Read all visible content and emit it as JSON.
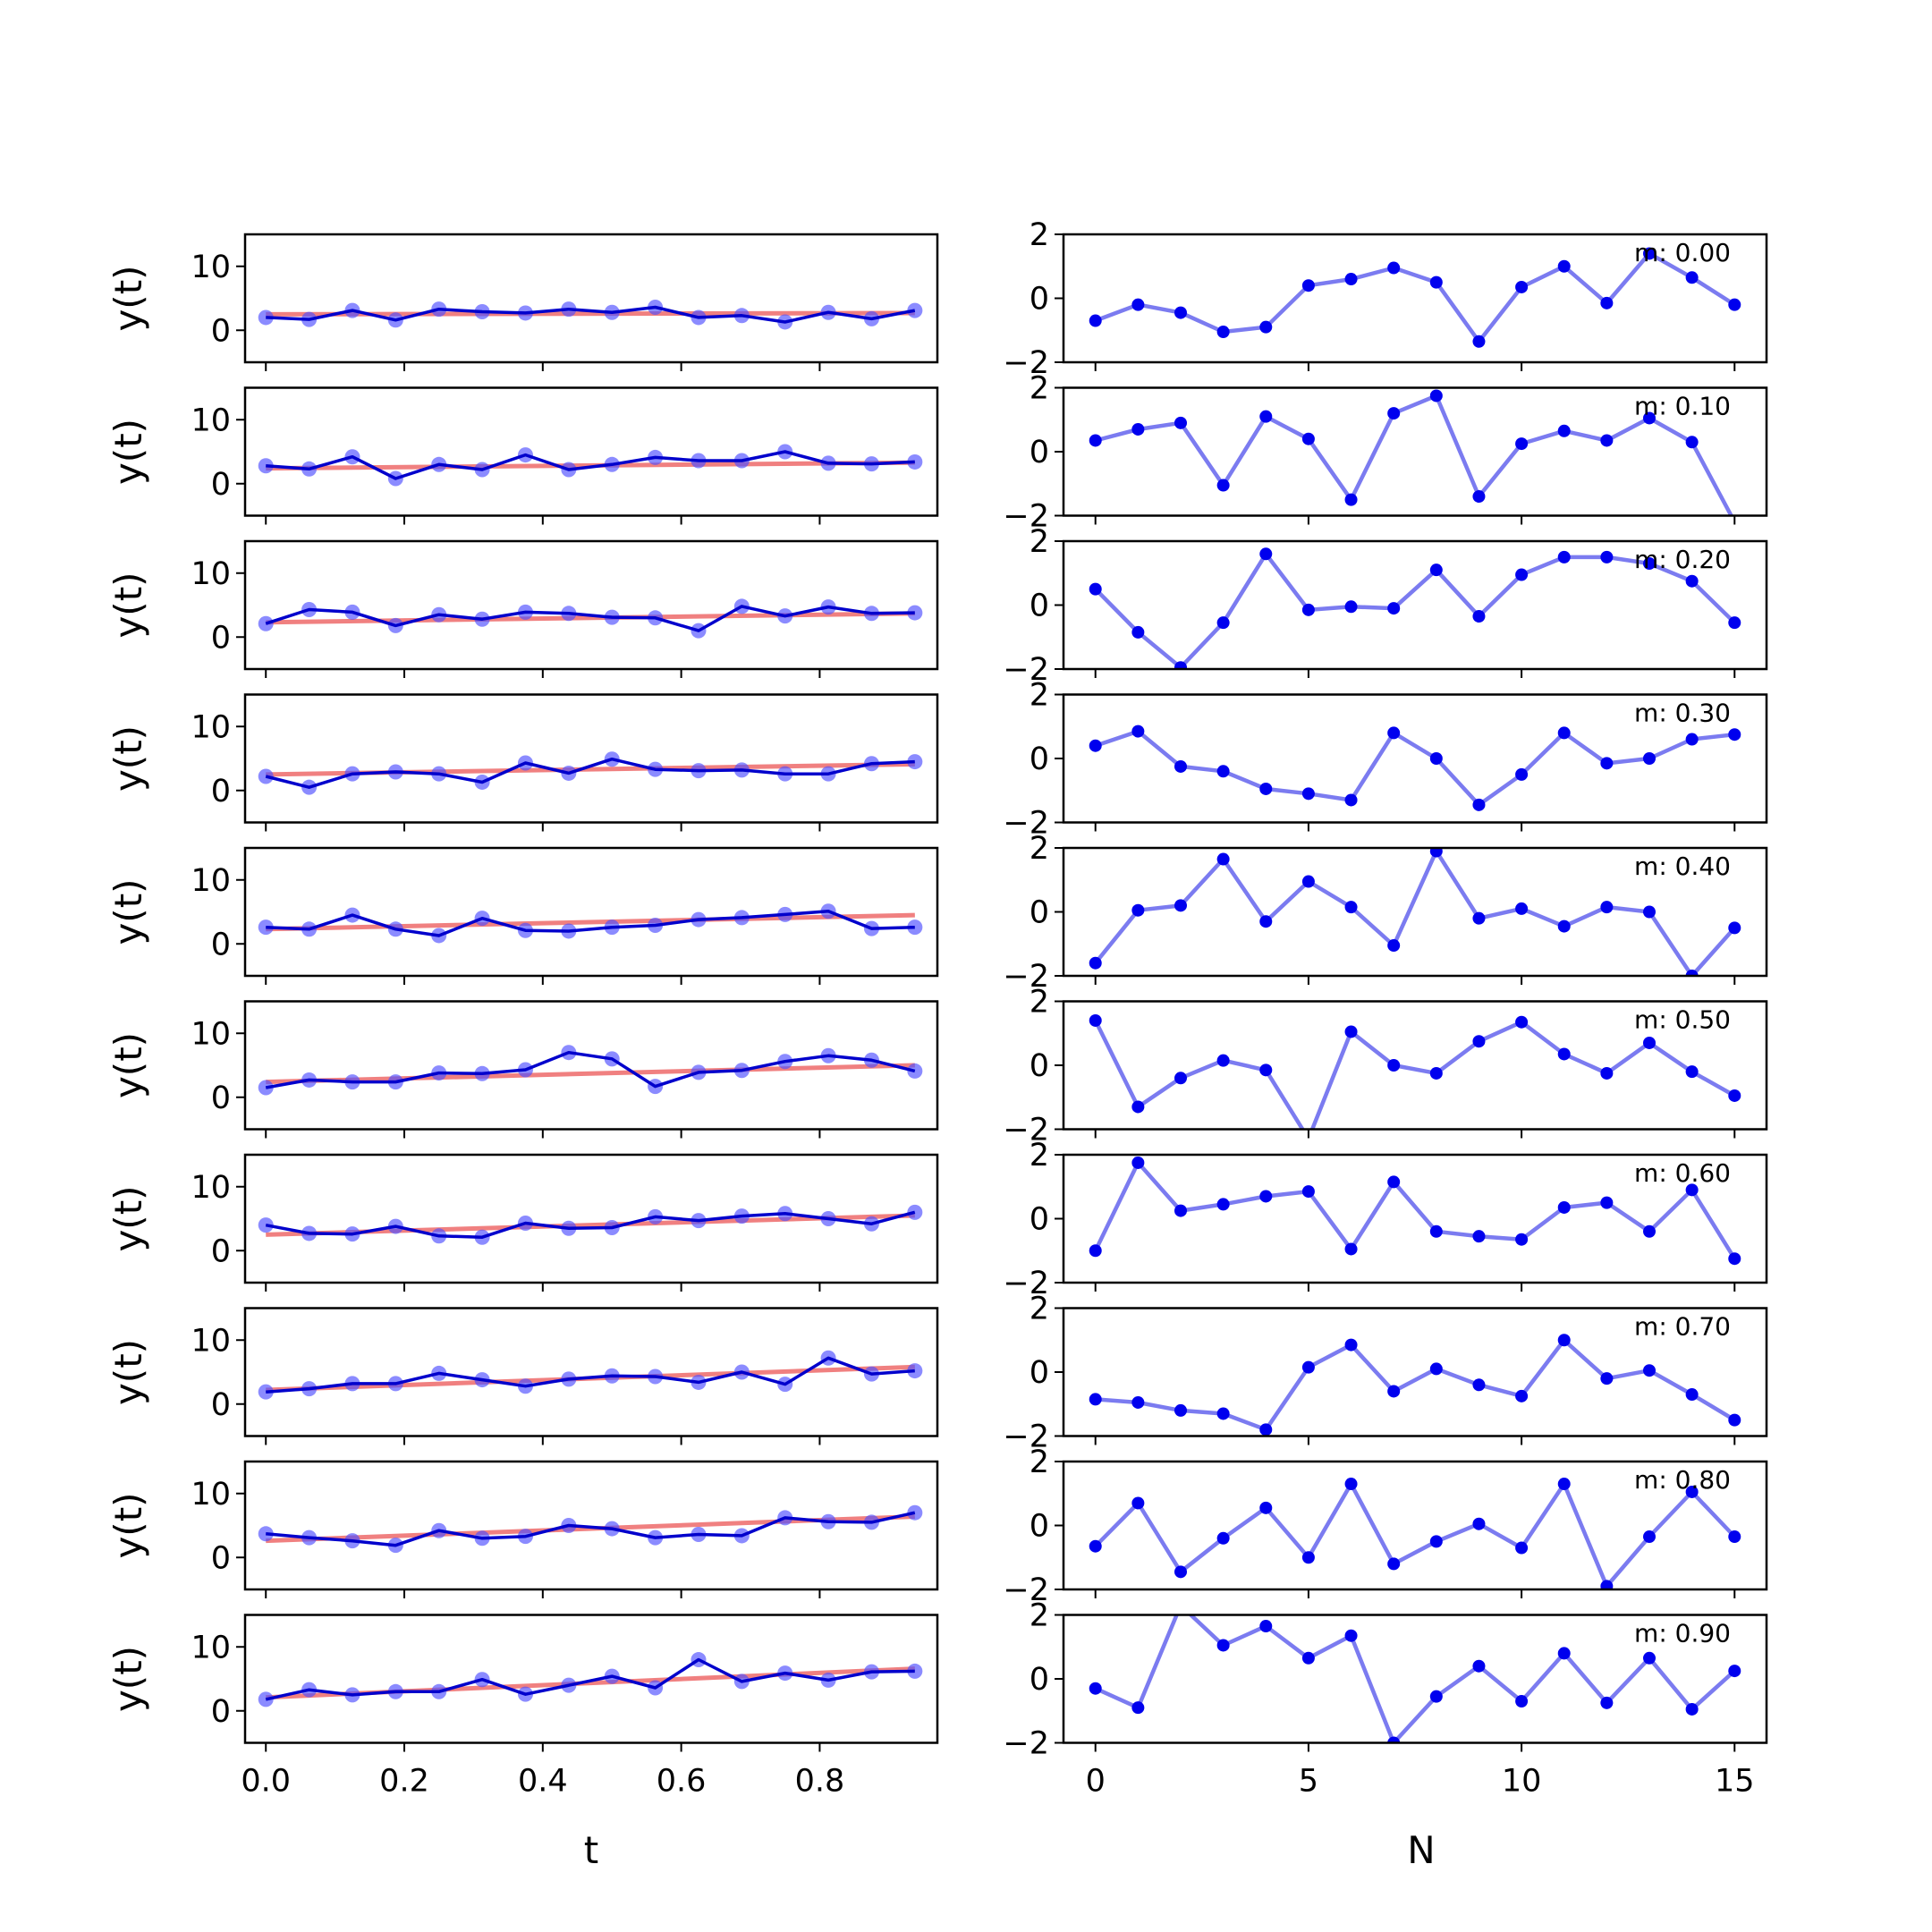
{
  "colors": {
    "data_line": "#0000cc",
    "data_points": "#4d4dff",
    "fit_line": "#f08080",
    "residual_line": "#7b7bf0",
    "residual_points": "#0000ee"
  },
  "chart_data": [
    {
      "type": "line",
      "name": "left column: y(t) vs t, 10 stacked panels",
      "xlabel": "t",
      "ylabel": "y(t)",
      "xlim": [
        -0.03,
        0.97
      ],
      "ylim": [
        -5,
        15
      ],
      "xticks": [
        0.0,
        0.2,
        0.4,
        0.6,
        0.8
      ],
      "xtick_labels": [
        "0.0",
        "0.2",
        "0.4",
        "0.6",
        "0.8"
      ],
      "yticks": [
        0,
        10
      ],
      "ytick_labels": [
        "0",
        "10"
      ],
      "x": [
        0,
        0.0625,
        0.125,
        0.1875,
        0.25,
        0.3125,
        0.375,
        0.4375,
        0.5,
        0.5625,
        0.625,
        0.6875,
        0.75,
        0.8125,
        0.875,
        0.9375
      ],
      "panels": [
        {
          "values": [
            2.0,
            1.7,
            3.1,
            1.6,
            3.3,
            2.9,
            2.7,
            3.3,
            2.8,
            3.6,
            2.0,
            2.3,
            1.3,
            2.8,
            1.8,
            3.1
          ],
          "fit": [
            2.5,
            2.7
          ]
        },
        {
          "values": [
            2.8,
            2.3,
            4.2,
            0.8,
            3.0,
            2.2,
            4.5,
            2.2,
            3.0,
            4.1,
            3.6,
            3.6,
            5.0,
            3.2,
            3.1,
            3.4
          ],
          "fit": [
            2.4,
            3.3
          ]
        },
        {
          "values": [
            2.1,
            4.3,
            3.9,
            1.8,
            3.5,
            2.8,
            3.9,
            3.7,
            3.1,
            3.0,
            1.0,
            4.8,
            3.3,
            4.7,
            3.7,
            3.8
          ],
          "fit": [
            2.3,
            3.7
          ]
        },
        {
          "values": [
            2.2,
            0.5,
            2.6,
            2.9,
            2.6,
            1.3,
            4.3,
            2.7,
            4.9,
            3.3,
            3.1,
            3.2,
            2.6,
            2.6,
            4.2,
            4.5
          ],
          "fit": [
            2.5,
            4.1
          ]
        },
        {
          "values": [
            2.6,
            2.3,
            4.5,
            2.3,
            1.3,
            4.0,
            2.1,
            2.0,
            2.6,
            2.9,
            3.8,
            4.1,
            4.6,
            5.1,
            2.4,
            2.6
          ],
          "fit": [
            2.3,
            4.5
          ]
        },
        {
          "values": [
            1.5,
            2.7,
            2.4,
            2.4,
            3.8,
            3.7,
            4.3,
            7.0,
            6.0,
            1.7,
            3.9,
            4.2,
            5.6,
            6.5,
            5.8,
            4.1
          ],
          "fit": [
            2.4,
            5.0
          ]
        },
        {
          "values": [
            4.0,
            2.7,
            2.6,
            3.8,
            2.3,
            2.1,
            4.3,
            3.5,
            3.6,
            5.3,
            4.7,
            5.4,
            5.8,
            5.0,
            4.2,
            6.0
          ],
          "fit": [
            2.5,
            5.5
          ]
        },
        {
          "values": [
            1.9,
            2.4,
            3.2,
            3.2,
            4.8,
            3.8,
            2.8,
            3.9,
            4.4,
            4.3,
            3.4,
            5.0,
            3.1,
            7.2,
            4.7,
            5.2
          ],
          "fit": [
            2.2,
            5.8
          ]
        },
        {
          "values": [
            3.7,
            3.1,
            2.6,
            1.9,
            4.2,
            3.0,
            3.3,
            5.0,
            4.5,
            3.1,
            3.6,
            3.4,
            6.2,
            5.6,
            5.5,
            7.0
          ],
          "fit": [
            2.6,
            6.4
          ]
        },
        {
          "values": [
            1.8,
            3.3,
            2.5,
            3.0,
            3.0,
            4.9,
            2.6,
            4.0,
            5.4,
            3.6,
            8.0,
            4.6,
            5.9,
            4.8,
            6.1,
            6.2
          ],
          "fit": [
            2.1,
            6.6
          ]
        }
      ]
    },
    {
      "type": "line",
      "name": "right column: residual vs N, 10 stacked panels",
      "xlabel": "N",
      "ylabel": "",
      "xlim": [
        -0.75,
        15.75
      ],
      "ylim": [
        -2,
        2
      ],
      "xticks": [
        0,
        5,
        10,
        15
      ],
      "xtick_labels": [
        "0",
        "5",
        "10",
        "15"
      ],
      "yticks": [
        -2,
        0,
        2
      ],
      "ytick_labels": [
        "−2",
        "0",
        "2"
      ],
      "x": [
        0,
        1,
        2,
        3,
        4,
        5,
        6,
        7,
        8,
        9,
        10,
        11,
        12,
        13,
        14,
        15
      ],
      "panels": [
        {
          "label": "m: 0.00",
          "values": [
            -0.7,
            -0.2,
            -0.45,
            -1.05,
            -0.9,
            0.4,
            0.6,
            0.95,
            0.5,
            -1.35,
            0.35,
            1.0,
            -0.15,
            1.4,
            0.65,
            -0.2
          ]
        },
        {
          "label": "m: 0.10",
          "values": [
            0.35,
            0.7,
            0.9,
            -1.05,
            1.1,
            0.4,
            -1.5,
            1.2,
            1.75,
            -1.4,
            0.25,
            0.65,
            0.35,
            1.05,
            0.3,
            -2.2
          ]
        },
        {
          "label": "m: 0.20",
          "values": [
            0.5,
            -0.85,
            -1.95,
            -0.55,
            1.6,
            -0.15,
            -0.05,
            -0.1,
            1.1,
            -0.35,
            0.95,
            1.5,
            1.5,
            1.3,
            0.75,
            -0.55
          ]
        },
        {
          "label": "m: 0.30",
          "values": [
            0.4,
            0.85,
            -0.25,
            -0.4,
            -0.95,
            -1.1,
            -1.3,
            0.8,
            0.0,
            -1.45,
            -0.5,
            0.8,
            -0.15,
            0.0,
            0.6,
            0.75
          ]
        },
        {
          "label": "m: 0.40",
          "values": [
            -1.6,
            0.05,
            0.2,
            1.65,
            -0.3,
            0.95,
            0.15,
            -1.05,
            1.9,
            -0.2,
            0.1,
            -0.45,
            0.15,
            0.0,
            -2.0,
            -0.5
          ]
        },
        {
          "label": "m: 0.50",
          "values": [
            1.4,
            -1.3,
            -0.4,
            0.15,
            -0.15,
            -2.3,
            1.05,
            0.0,
            -0.25,
            0.75,
            1.35,
            0.35,
            -0.25,
            0.7,
            -0.2,
            -0.95
          ]
        },
        {
          "label": "m: 0.60",
          "values": [
            -1.0,
            1.75,
            0.25,
            0.45,
            0.7,
            0.85,
            -0.95,
            1.15,
            -0.4,
            -0.55,
            -0.65,
            0.35,
            0.5,
            -0.4,
            0.9,
            -1.25
          ]
        },
        {
          "label": "m: 0.70",
          "values": [
            -0.85,
            -0.95,
            -1.2,
            -1.3,
            -1.8,
            0.15,
            0.85,
            -0.6,
            0.1,
            -0.4,
            -0.75,
            1.0,
            -0.2,
            0.05,
            -0.7,
            -1.5
          ]
        },
        {
          "label": "m: 0.80",
          "values": [
            -0.65,
            0.7,
            -1.45,
            -0.4,
            0.55,
            -1.0,
            1.3,
            -1.2,
            -0.5,
            0.05,
            -0.7,
            1.3,
            -1.9,
            -0.35,
            1.05,
            -0.35
          ]
        },
        {
          "label": "m: 0.90",
          "values": [
            -0.3,
            -0.9,
            2.3,
            1.05,
            1.65,
            0.65,
            1.35,
            -2.0,
            -0.55,
            0.4,
            -0.7,
            0.8,
            -0.75,
            0.65,
            -0.95,
            0.25
          ]
        }
      ]
    }
  ]
}
